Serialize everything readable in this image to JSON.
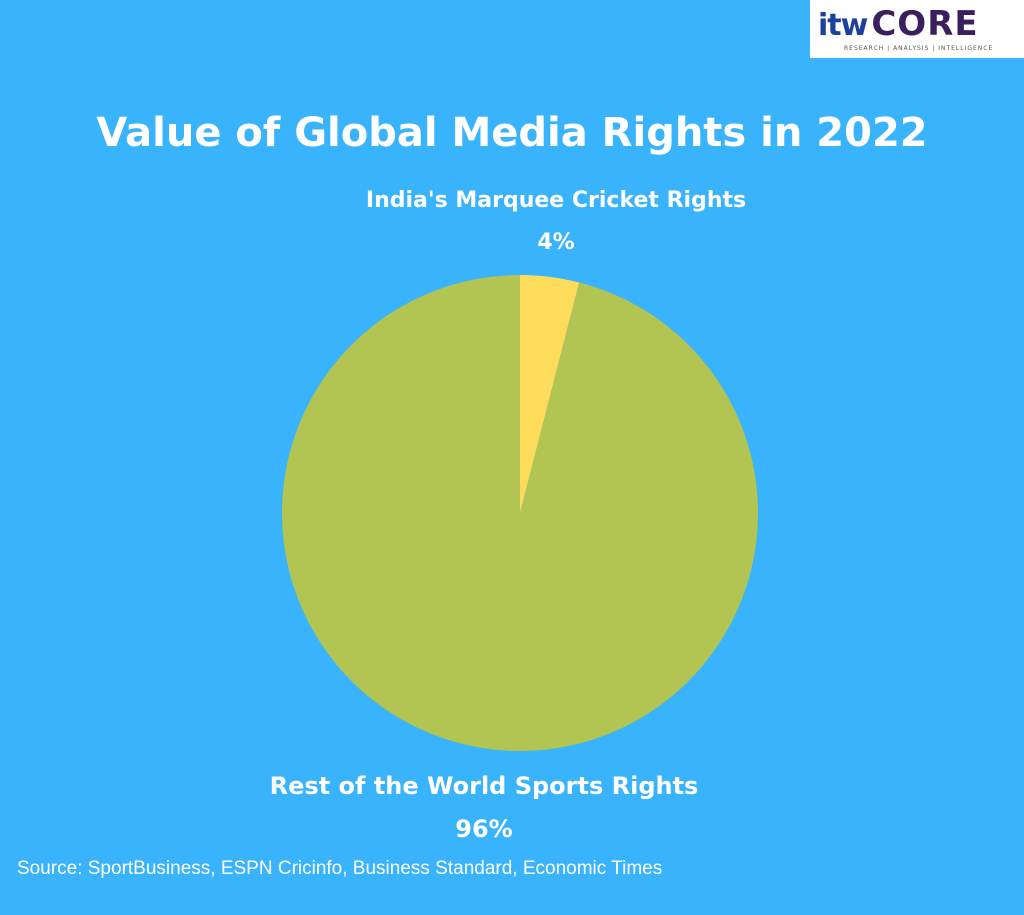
{
  "logo": {
    "brand": "itw",
    "name": "CORE",
    "tagline": "RESEARCH | ANALYSIS | INTELLIGENCE"
  },
  "chart_data": {
    "type": "pie",
    "title": "Value of Global Media Rights in 2022",
    "slices": [
      {
        "label": "India's Marquee Cricket Rights",
        "value": 4,
        "value_label": "4%",
        "color": "#fddc5c"
      },
      {
        "label": "Rest of the World Sports Rights",
        "value": 96,
        "value_label": "96%",
        "color": "#b2c451"
      }
    ],
    "start_angle": "12 o'clock",
    "direction": "clockwise"
  },
  "source": "Source: SportBusiness, ESPN Cricinfo, Business Standard, Economic Times"
}
